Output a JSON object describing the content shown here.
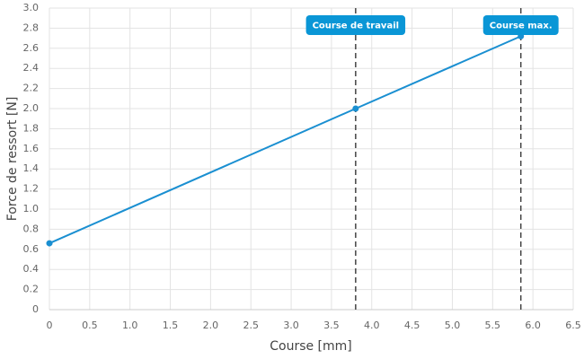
{
  "chart_data": {
    "type": "line",
    "xlabel": "Course [mm]",
    "ylabel": "Force de ressort [N]",
    "x": [
      0,
      3.8,
      5.85
    ],
    "values": [
      0.66,
      2.0,
      2.72
    ],
    "color": "#1a8fd1",
    "xlim": [
      0,
      6.5
    ],
    "xticks": [
      0,
      0.5,
      {
        "value": 1,
        "label": "1.0"
      },
      1.5,
      {
        "value": 2,
        "label": "2.0"
      },
      2.5,
      {
        "value": 3,
        "label": "3.0"
      },
      3.5,
      {
        "value": 4,
        "label": "4.0"
      },
      4.5,
      {
        "value": 5,
        "label": "5.0"
      },
      5.5,
      {
        "value": 6,
        "label": "6.0"
      },
      6.5
    ],
    "ylim": [
      0,
      3
    ],
    "yticks": [
      0,
      0.2,
      0.4,
      0.6,
      0.8,
      {
        "value": 1,
        "label": "1.0"
      },
      1.2,
      1.4,
      1.6,
      1.8,
      {
        "value": 2,
        "label": "2.0"
      },
      2.2,
      2.4,
      2.6,
      2.8,
      {
        "value": 3,
        "label": "3.0"
      }
    ],
    "grid": true,
    "annotations": [
      {
        "x": 3.8,
        "label": "Course de travail",
        "color": "#0a96d6"
      },
      {
        "x": 5.85,
        "label": "Course max.",
        "color": "#0a96d6"
      }
    ]
  }
}
